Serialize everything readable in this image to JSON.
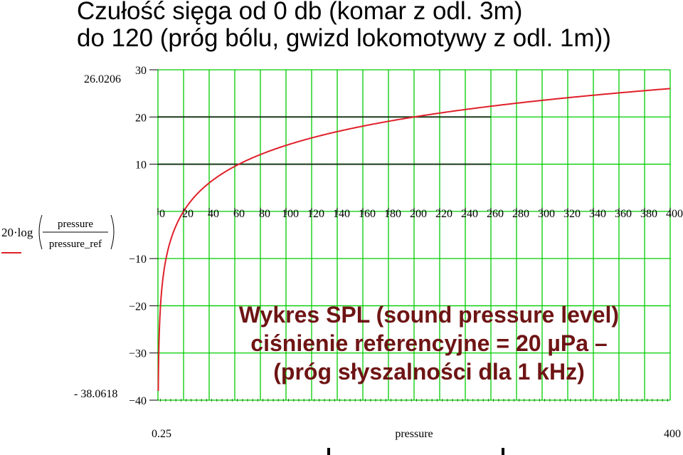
{
  "title": {
    "line1": "Czułość sięga od 0 db (komar z odl. 3m)",
    "line2": "do 120 (próg bólu, gwizd lokomotywy z odl. 1m))"
  },
  "annotation": {
    "line1": "Wykres SPL (sound pressure level)",
    "line2": "ciśnienie referencyjne = 20 µPa –",
    "line3": "(próg słyszalności dla 1 kHz)"
  },
  "ylabel": {
    "prefix": "20·log",
    "numerator": "pressure",
    "denominator": "pressure_ref"
  },
  "xlabel": "pressure",
  "range_labels": {
    "ymax": "26.0206",
    "ymin": "- 38.0618",
    "xmin": "0.25",
    "xmax": "400"
  },
  "colors": {
    "grid": "#00cc00",
    "curve": "#e0202a",
    "annotation": "#6e1414"
  },
  "chart_data": {
    "type": "line",
    "function": "20*log10(pressure/pressure_ref)",
    "pressure_ref": 20,
    "xlim": [
      0.25,
      400
    ],
    "ylim": [
      -40,
      30
    ],
    "x_ticks": [
      0,
      20,
      40,
      60,
      80,
      100,
      120,
      140,
      160,
      180,
      200,
      220,
      240,
      260,
      280,
      300,
      320,
      340,
      360,
      380,
      400
    ],
    "y_ticks": [
      30,
      20,
      10,
      -10,
      -20,
      -30,
      -40
    ],
    "y_tick_labels": [
      "30",
      "20",
      "10",
      "−10",
      "−20",
      "−30",
      "−40"
    ],
    "grid": true,
    "series": [
      {
        "x": [
          0.25,
          0.5,
          1,
          2,
          3,
          5,
          7.5,
          10,
          15,
          20,
          30,
          40,
          60,
          80,
          100,
          120,
          140,
          160,
          180,
          200,
          220,
          240,
          260,
          280,
          300,
          320,
          340,
          360,
          380,
          400
        ],
        "y": [
          -38.06,
          -32.04,
          -26.02,
          -20,
          -16.48,
          -12.04,
          -8.52,
          -6.02,
          -2.5,
          0,
          3.52,
          6.02,
          9.54,
          12.04,
          13.98,
          15.56,
          16.9,
          18.06,
          19.08,
          20,
          20.83,
          21.58,
          22.28,
          22.92,
          23.52,
          24.08,
          24.61,
          25.11,
          25.58,
          26.02
        ]
      }
    ]
  }
}
